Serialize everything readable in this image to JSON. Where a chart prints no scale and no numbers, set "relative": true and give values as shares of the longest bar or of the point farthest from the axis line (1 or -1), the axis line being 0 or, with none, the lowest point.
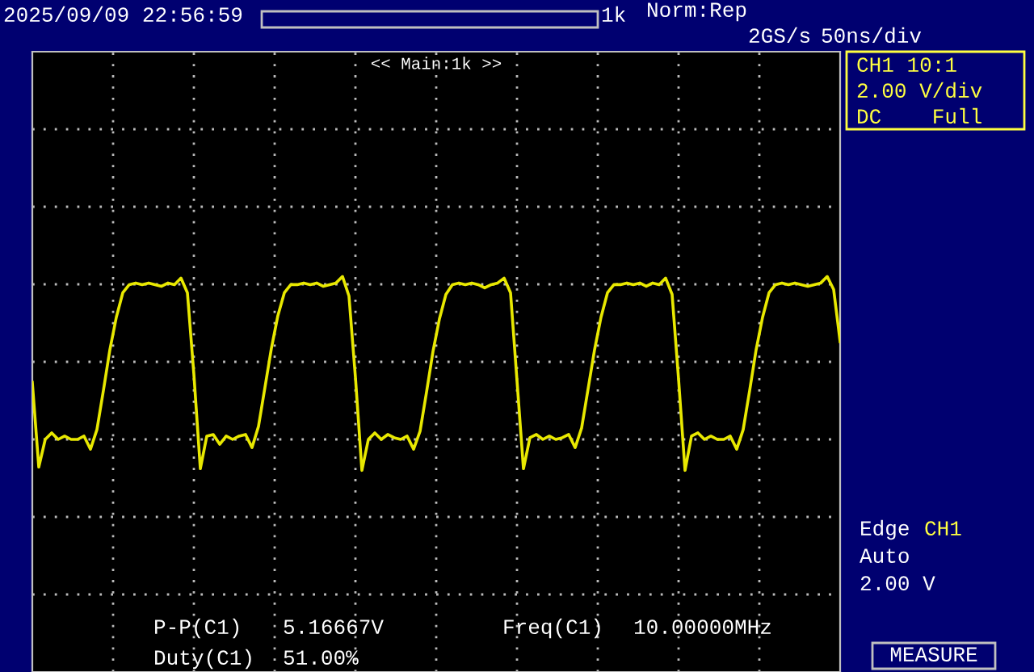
{
  "chart_data": {
    "type": "line",
    "relative": true,
    "grid": true,
    "legend": false,
    "marker": "none",
    "line_style": "solid",
    "categories": [
      null,
      null,
      null,
      null,
      null,
      null,
      null,
      null,
      null,
      null,
      null,
      null,
      null,
      null,
      null,
      null,
      null,
      null,
      null,
      null,
      null,
      null,
      null,
      null,
      null,
      null,
      null,
      null,
      null,
      null,
      null,
      null,
      null,
      null,
      null,
      null,
      null,
      null,
      null,
      null,
      null,
      null,
      null,
      null,
      null,
      null,
      null,
      null,
      null,
      null,
      null,
      null,
      null,
      null,
      null,
      null,
      null,
      null,
      null,
      null,
      null,
      null,
      null,
      null,
      null,
      null,
      null,
      null,
      null,
      null,
      null,
      null,
      null,
      null,
      null,
      null,
      null,
      null,
      null,
      null,
      null,
      null,
      null,
      null,
      null,
      null,
      null,
      null,
      null,
      null,
      null,
      null,
      null,
      null,
      null,
      null,
      null,
      null,
      null,
      null,
      null,
      null,
      null,
      null,
      null,
      null,
      null,
      null,
      null,
      null,
      null,
      null,
      null,
      null,
      null,
      null,
      null,
      null,
      null,
      null,
      null,
      null,
      null,
      null,
      null,
      null
    ],
    "series": [
      {
        "color": "#e8e800",
        "values": [
          0.35,
          -0.17,
          0.0,
          0.04,
          0.0,
          0.02,
          0.0,
          0.0,
          0.02,
          -0.06,
          0.06,
          0.3,
          0.55,
          0.75,
          0.9,
          0.95,
          0.96,
          0.95,
          0.96,
          0.95,
          0.94,
          0.96,
          0.95,
          0.99,
          0.9,
          0.4,
          -0.18,
          0.02,
          0.03,
          -0.03,
          0.02,
          0.0,
          0.02,
          0.03,
          -0.05,
          0.08,
          0.32,
          0.56,
          0.76,
          0.9,
          0.95,
          0.95,
          0.96,
          0.95,
          0.96,
          0.94,
          0.95,
          0.96,
          1.0,
          0.88,
          0.38,
          -0.19,
          0.0,
          0.04,
          0.0,
          0.03,
          0.01,
          0.0,
          0.02,
          -0.06,
          0.05,
          0.29,
          0.54,
          0.74,
          0.89,
          0.95,
          0.96,
          0.95,
          0.96,
          0.95,
          0.93,
          0.95,
          0.96,
          0.99,
          0.9,
          0.36,
          -0.18,
          0.01,
          0.03,
          0.0,
          0.02,
          0.0,
          0.01,
          0.03,
          -0.05,
          0.07,
          0.31,
          0.55,
          0.75,
          0.9,
          0.95,
          0.95,
          0.96,
          0.95,
          0.96,
          0.94,
          0.96,
          0.95,
          0.99,
          0.89,
          0.37,
          -0.19,
          0.02,
          0.04,
          0.0,
          0.02,
          0.0,
          0.0,
          0.02,
          -0.06,
          0.06,
          0.3,
          0.55,
          0.75,
          0.9,
          0.95,
          0.96,
          0.95,
          0.96,
          0.95,
          0.94,
          0.95,
          0.96,
          1.0,
          0.92,
          0.6
        ]
      }
    ],
    "annotations": [
      "2025/09/09 22:56:59",
      "1k",
      "Norm:Rep",
      "2GS/s",
      "50ns/div",
      "<< Main:1k >>",
      "CH1 10:1",
      "2.00 V/div",
      "DC    Full",
      "Edge",
      "CH1",
      "Auto",
      "2.00 V",
      "P-P(C1)",
      "5.16667V",
      "Freq(C1)",
      "10.00000MHz",
      "Duty(C1)",
      "51.00%",
      "MEASURE"
    ]
  }
}
